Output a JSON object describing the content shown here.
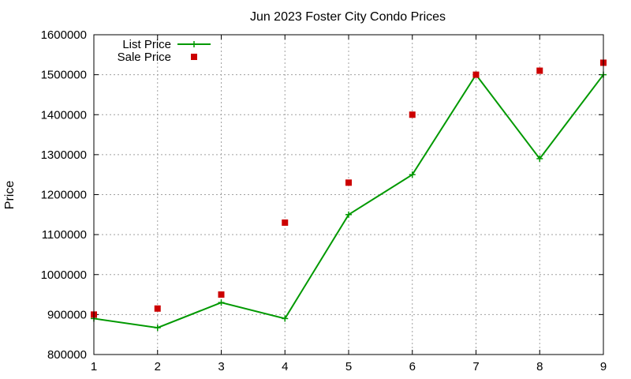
{
  "chart_data": {
    "type": "line",
    "title": "Jun 2023 Foster City Condo Prices",
    "xlabel": "",
    "ylabel": "Price",
    "x": [
      1,
      2,
      3,
      4,
      5,
      6,
      7,
      8,
      9
    ],
    "xlim": [
      1,
      9
    ],
    "ylim": [
      800000,
      1600000
    ],
    "xticks": [
      "1",
      "2",
      "3",
      "4",
      "5",
      "6",
      "7",
      "8",
      "9"
    ],
    "yticks": [
      "800000",
      "900000",
      "1000000",
      "1100000",
      "1200000",
      "1300000",
      "1400000",
      "1500000",
      "1600000"
    ],
    "grid": true,
    "legend_position": "top-left",
    "series": [
      {
        "name": "List Price",
        "style": "line-points",
        "marker": "plus",
        "color": "#009900",
        "values": [
          890000,
          867000,
          930000,
          890000,
          1150000,
          1250000,
          1500000,
          1290000,
          1500000
        ]
      },
      {
        "name": "Sale Price",
        "style": "points",
        "marker": "square",
        "color": "#cc0000",
        "values": [
          900000,
          915000,
          950000,
          1130000,
          1230000,
          1400000,
          1500000,
          1510000,
          1530000
        ]
      }
    ]
  }
}
